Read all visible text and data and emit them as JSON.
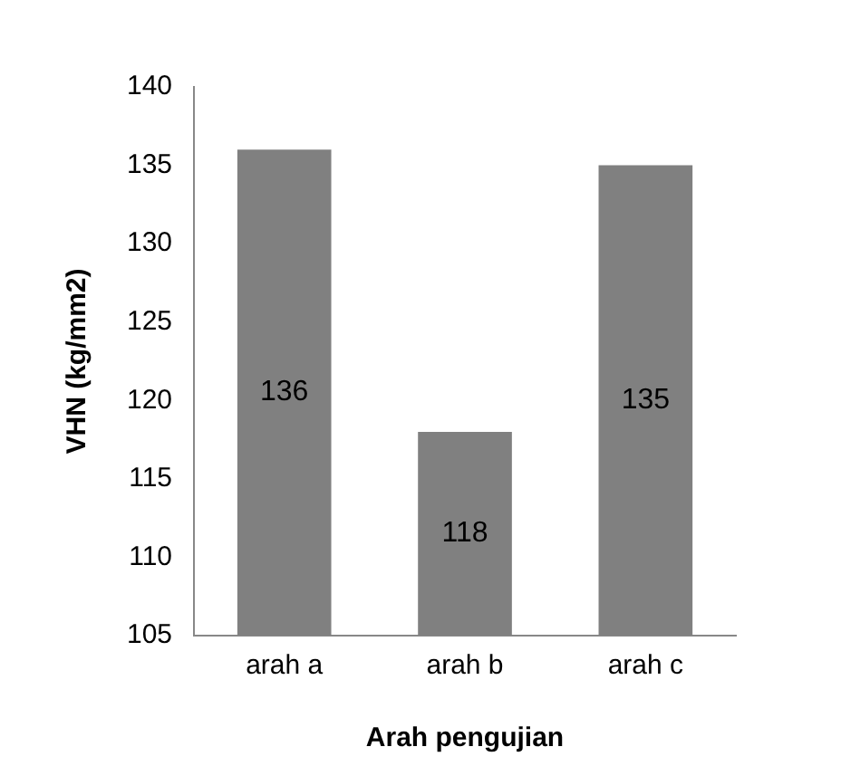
{
  "chart_data": {
    "type": "bar",
    "xlabel": "Arah pengujian",
    "ylabel": "VHN (kg/mm2)",
    "categories": [
      "arah a",
      "arah b",
      "arah c"
    ],
    "values": [
      136,
      118,
      135
    ],
    "color": "#808080",
    "ylim": [
      105,
      140
    ],
    "yticks": [
      105,
      110,
      115,
      120,
      125,
      130,
      135,
      140
    ],
    "grid": false,
    "legend": false,
    "data_labels": true
  }
}
